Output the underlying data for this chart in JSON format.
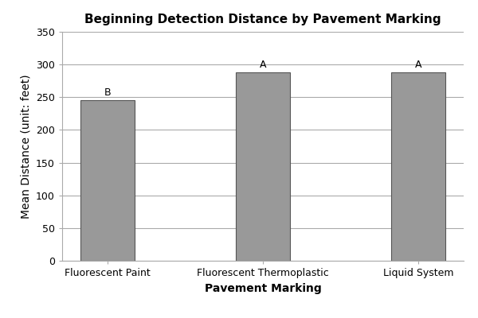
{
  "title": "Beginning Detection Distance by Pavement Marking",
  "xlabel": "Pavement Marking",
  "ylabel": "Mean Distance (unit: feet)",
  "categories": [
    "Fluorescent Paint",
    "Fluorescent Thermoplastic",
    "Liquid System"
  ],
  "values": [
    245,
    288,
    288
  ],
  "bar_color": "#999999",
  "bar_edgecolor": "#555555",
  "bar_linewidth": 0.8,
  "annotations": [
    "B",
    "A",
    "A"
  ],
  "ylim": [
    0,
    350
  ],
  "yticks": [
    0,
    50,
    100,
    150,
    200,
    250,
    300,
    350
  ],
  "title_fontsize": 11,
  "axis_label_fontsize": 10,
  "tick_fontsize": 9,
  "annotation_fontsize": 9,
  "background_color": "#ffffff",
  "grid_color": "#aaaaaa",
  "bar_width": 0.35
}
